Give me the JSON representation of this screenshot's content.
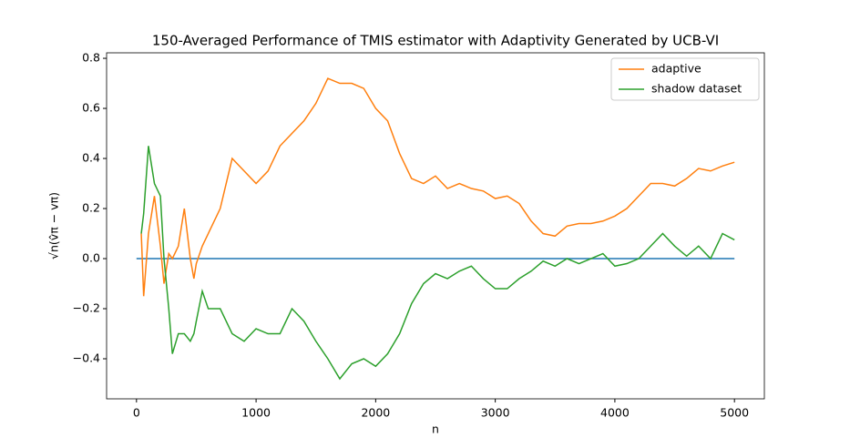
{
  "chart_data": {
    "type": "line",
    "title": "150-Averaged Performance of TMIS estimator with Adaptivity Generated by UCB-VI",
    "x_label": "n",
    "y_label": "√n(v̂π − vπ)",
    "x": [
      40,
      60,
      100,
      150,
      200,
      230,
      270,
      300,
      350,
      400,
      450,
      480,
      500,
      550,
      600,
      700,
      800,
      900,
      1000,
      1100,
      1200,
      1300,
      1400,
      1500,
      1600,
      1700,
      1800,
      1900,
      2000,
      2100,
      2200,
      2300,
      2400,
      2500,
      2600,
      2700,
      2800,
      2900,
      3000,
      3100,
      3200,
      3300,
      3400,
      3500,
      3600,
      3700,
      3800,
      3900,
      4000,
      4100,
      4200,
      4300,
      4400,
      4500,
      4600,
      4700,
      4800,
      4900,
      5000
    ],
    "series": [
      {
        "name": "adaptive",
        "color": "#ff7f0e",
        "values": [
          0.1,
          -0.15,
          0.1,
          0.25,
          0.05,
          -0.1,
          0.02,
          0.0,
          0.05,
          0.2,
          0.0,
          -0.08,
          -0.02,
          0.05,
          0.1,
          0.2,
          0.4,
          0.35,
          0.3,
          0.35,
          0.45,
          0.5,
          0.55,
          0.62,
          0.72,
          0.7,
          0.7,
          0.68,
          0.6,
          0.55,
          0.42,
          0.32,
          0.3,
          0.33,
          0.28,
          0.3,
          0.28,
          0.27,
          0.24,
          0.25,
          0.22,
          0.15,
          0.1,
          0.09,
          0.13,
          0.14,
          0.14,
          0.15,
          0.17,
          0.2,
          0.25,
          0.3,
          0.3,
          0.29,
          0.32,
          0.36,
          0.35,
          0.37,
          0.385
        ]
      },
      {
        "name": "shadow dataset",
        "color": "#2ca02c",
        "values": [
          0.1,
          0.18,
          0.45,
          0.3,
          0.25,
          0.0,
          -0.2,
          -0.38,
          -0.3,
          -0.3,
          -0.33,
          -0.3,
          -0.25,
          -0.13,
          -0.2,
          -0.2,
          -0.3,
          -0.33,
          -0.28,
          -0.3,
          -0.3,
          -0.2,
          -0.25,
          -0.33,
          -0.4,
          -0.48,
          -0.42,
          -0.4,
          -0.43,
          -0.38,
          -0.3,
          -0.18,
          -0.1,
          -0.06,
          -0.08,
          -0.05,
          -0.03,
          -0.08,
          -0.12,
          -0.12,
          -0.08,
          -0.05,
          -0.01,
          -0.03,
          0.0,
          -0.02,
          0.0,
          0.02,
          -0.03,
          -0.02,
          0.0,
          0.05,
          0.1,
          0.05,
          0.01,
          0.05,
          0.0,
          0.1,
          0.075
        ]
      }
    ],
    "hline": {
      "y": 0,
      "xmin": 0,
      "xmax": 5000,
      "color": "#1f77b4"
    },
    "xlim": [
      -250,
      5250
    ],
    "xticks": [
      0,
      1000,
      2000,
      3000,
      4000,
      5000
    ],
    "ylim": [
      -0.56,
      0.822
    ],
    "yticks": [
      {
        "value": -0.4,
        "label": "−0.4"
      },
      {
        "value": -0.2,
        "label": "−0.2"
      },
      {
        "value": 0,
        "label": "0.0"
      },
      {
        "value": 0.2,
        "label": "0.2"
      },
      {
        "value": 0.4,
        "label": "0.4"
      },
      {
        "value": 0.6,
        "label": "0.6"
      },
      {
        "value": 0.8,
        "label": "0.8"
      }
    ],
    "legend": "upper right",
    "grid": false
  }
}
